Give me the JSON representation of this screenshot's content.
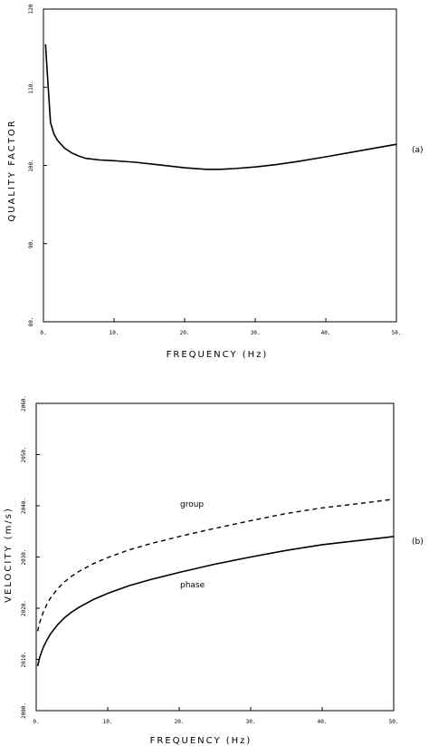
{
  "chart_data": [
    {
      "type": "line",
      "panel_label": "(a)",
      "xlabel": "FREQUENCY (Hz)",
      "ylabel": "QUALITY FACTOR",
      "xlim": [
        0,
        50
      ],
      "ylim": [
        80,
        120
      ],
      "xticks": [
        "0.",
        "10.",
        "20.",
        "30.",
        "40.",
        "50."
      ],
      "yticks": [
        "80.",
        "90.",
        "100.",
        "110.",
        "120"
      ],
      "series": [
        {
          "x": [
            0.3,
            0.6,
            1,
            1.5,
            2,
            3,
            4,
            5,
            6,
            8,
            10,
            13,
            16,
            20,
            23,
            25,
            27,
            30,
            33,
            36,
            40,
            45,
            50
          ],
          "y": [
            115.5,
            111,
            105.5,
            104,
            103.2,
            102.2,
            101.6,
            101.2,
            100.9,
            100.7,
            100.6,
            100.4,
            100.1,
            99.7,
            99.5,
            99.5,
            99.6,
            99.8,
            100.1,
            100.5,
            101.1,
            101.9,
            102.7
          ]
        }
      ]
    },
    {
      "type": "line",
      "panel_label": "(b)",
      "xlabel": "FREQUENCY (Hz)",
      "ylabel": "VELOCITY (m/s)",
      "xlim": [
        0,
        50
      ],
      "ylim": [
        2000,
        2060
      ],
      "xticks": [
        "0.",
        "10.",
        "20.",
        "30.",
        "40.",
        "50."
      ],
      "yticks": [
        "2000.",
        "2010.",
        "2020.",
        "2030.",
        "2040.",
        "2050.",
        "2060."
      ],
      "series": [
        {
          "name": "group",
          "style": "dashed",
          "x": [
            0.2,
            0.5,
            1,
            1.5,
            2,
            3,
            4,
            5,
            6,
            8,
            10,
            13,
            16,
            20,
            25,
            30,
            35,
            40,
            45,
            50
          ],
          "y": [
            2015.5,
            2017.3,
            2019.3,
            2020.8,
            2022.0,
            2023.8,
            2025.2,
            2026.3,
            2027.2,
            2028.7,
            2029.9,
            2031.4,
            2032.6,
            2034.0,
            2035.6,
            2037.1,
            2038.5,
            2039.6,
            2040.4,
            2041.3
          ]
        },
        {
          "name": "phase",
          "style": "solid",
          "x": [
            0.2,
            0.5,
            1,
            1.5,
            2,
            3,
            4,
            5,
            6,
            8,
            10,
            13,
            16,
            20,
            25,
            30,
            35,
            40,
            45,
            50
          ],
          "y": [
            2008.7,
            2010.5,
            2012.4,
            2013.8,
            2015.0,
            2016.8,
            2018.2,
            2019.3,
            2020.2,
            2021.7,
            2022.9,
            2024.4,
            2025.6,
            2027.0,
            2028.6,
            2030.0,
            2031.3,
            2032.4,
            2033.2,
            2034.0
          ]
        }
      ]
    }
  ]
}
